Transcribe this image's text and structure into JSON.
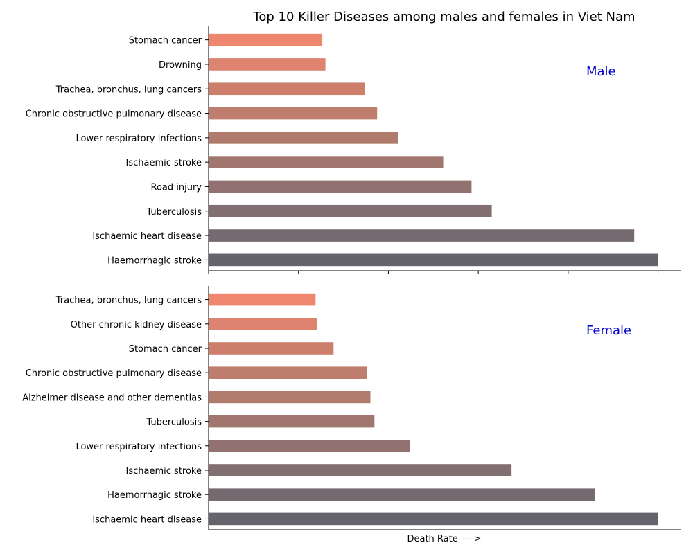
{
  "title": "Top 10 Killer Diseases among males and females in Viet Nam",
  "colors": [
    "#65646c",
    "#746a70",
    "#826f71",
    "#917270",
    "#a1766e",
    "#b07a6d",
    "#bf7d6d",
    "#cd7f6c",
    "#de836f",
    "#ef876f"
  ],
  "chart_data": [
    {
      "type": "bar",
      "orientation": "horizontal",
      "panel_label": "Male",
      "categories": [
        "Haemorrhagic stroke",
        "Ischaemic heart disease",
        "Tuberculosis",
        "Road injury",
        "Ischaemic stroke",
        "Lower respiratory infections",
        "Chronic obstructive pulmonary disease",
        "Trachea, bronchus, lung cancers",
        "Drowning",
        "Stomach cancer"
      ],
      "values": [
        100,
        94.7,
        63,
        58.5,
        52.2,
        42.2,
        37.5,
        34.8,
        26,
        25.3
      ],
      "xlim": [
        0,
        105
      ],
      "xlabel": "",
      "tick_labels_visible": false,
      "grid": false
    },
    {
      "type": "bar",
      "orientation": "horizontal",
      "panel_label": "Female",
      "categories": [
        "Ischaemic heart disease",
        "Haemorrhagic stroke",
        "Ischaemic stroke",
        "Lower respiratory infections",
        "Tuberculosis",
        "Alzheimer disease and other dementias",
        "Chronic obstructive pulmonary disease",
        "Stomach cancer",
        "Other chronic kidney disease",
        "Trachea, bronchus, lung cancers"
      ],
      "values": [
        100,
        86,
        67.4,
        44.8,
        36.9,
        36,
        35.2,
        27.8,
        24.2,
        23.8
      ],
      "xlim": [
        0,
        105
      ],
      "xlabel": "Death Rate ---->",
      "tick_labels_visible": false,
      "grid": false
    }
  ]
}
